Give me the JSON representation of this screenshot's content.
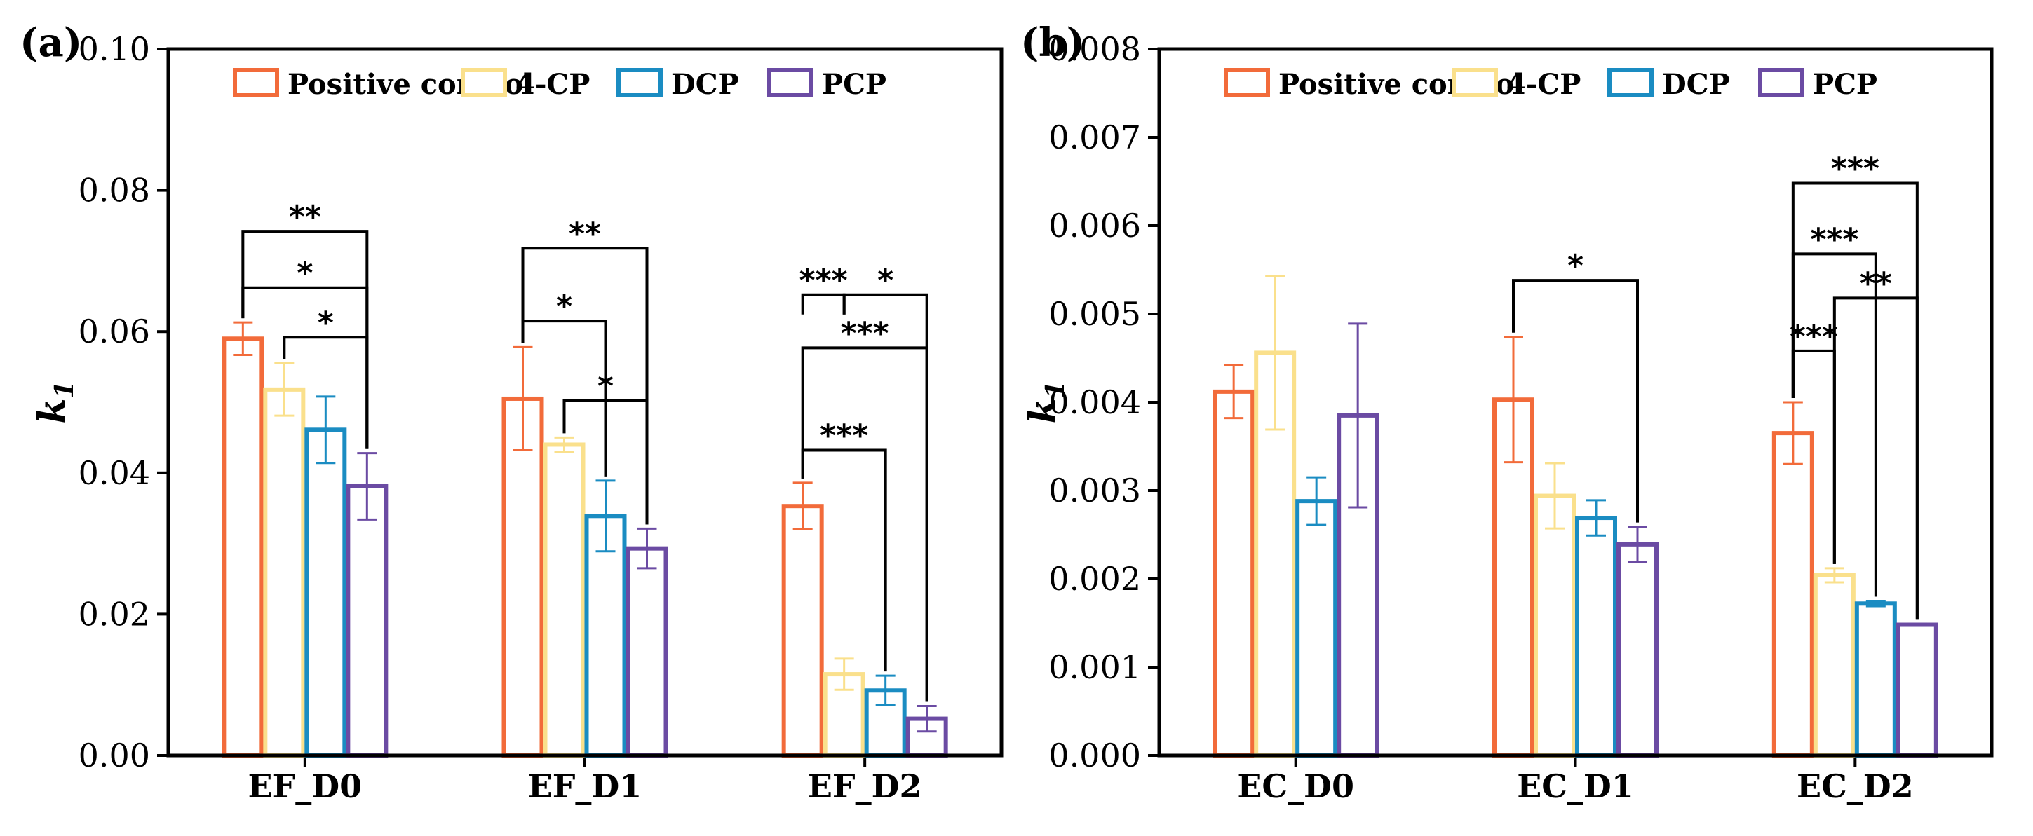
{
  "chart_data": [
    {
      "type": "bar",
      "panel_label": "(a)",
      "ylabel": "k",
      "ylabel_sub": "1",
      "xlabel": "",
      "ylim": [
        0,
        0.1
      ],
      "yticks": [
        "0.00",
        "0.02",
        "0.04",
        "0.06",
        "0.08",
        "0.10"
      ],
      "categories": [
        "EF_D0",
        "EF_D1",
        "EF_D2"
      ],
      "legend_position": "top",
      "series": [
        {
          "name": "Positive control",
          "color": "#F26B3A",
          "values": [
            0.059,
            0.0505,
            0.0353
          ],
          "errors": [
            0.0023,
            0.0073,
            0.0033
          ]
        },
        {
          "name": "4-CP",
          "color": "#FAE08C",
          "values": [
            0.0518,
            0.044,
            0.0115
          ],
          "errors": [
            0.0037,
            0.001,
            0.0022
          ]
        },
        {
          "name": "DCP",
          "color": "#1A8CC2",
          "values": [
            0.0461,
            0.0339,
            0.0092
          ],
          "errors": [
            0.0047,
            0.005,
            0.0021
          ]
        },
        {
          "name": "PCP",
          "color": "#6B4BA3",
          "values": [
            0.0381,
            0.0293,
            0.0052
          ],
          "errors": [
            0.0047,
            0.0028,
            0.0018
          ]
        }
      ],
      "annotations": [
        {
          "group": 0,
          "from": 0,
          "to": 3,
          "y": 0.0742,
          "text": "**"
        },
        {
          "group": 0,
          "from": 0,
          "to": 3,
          "y": 0.0662,
          "text": "*"
        },
        {
          "group": 0,
          "from": 1,
          "to": 3,
          "y": 0.0592,
          "text": "*"
        },
        {
          "group": 1,
          "from": 0,
          "to": 3,
          "y": 0.0718,
          "text": "**"
        },
        {
          "group": 1,
          "from": 0,
          "to": 2,
          "y": 0.0615,
          "text": "*"
        },
        {
          "group": 1,
          "from": 1,
          "to": 3,
          "y": 0.0502,
          "text": "*"
        },
        {
          "group": 2,
          "from": 0,
          "to": 1,
          "y": 0.0652,
          "text": "***",
          "mode": "mid"
        },
        {
          "group": 2,
          "from": 1,
          "to": 3,
          "y": 0.0652,
          "text": "*",
          "mode": "mid"
        },
        {
          "group": 2,
          "from": 0,
          "to": 3,
          "y": 0.0577,
          "text": "***"
        },
        {
          "group": 2,
          "from": 0,
          "to": 2,
          "y": 0.0432,
          "text": "***"
        }
      ]
    },
    {
      "type": "bar",
      "panel_label": "(b)",
      "ylabel": "k",
      "ylabel_sub": "1",
      "xlabel": "",
      "ylim": [
        0,
        0.008
      ],
      "yticks": [
        "0.000",
        "0.001",
        "0.002",
        "0.003",
        "0.004",
        "0.005",
        "0.006",
        "0.007",
        "0.008"
      ],
      "categories": [
        "EC_D0",
        "EC_D1",
        "EC_D2"
      ],
      "legend_position": "top",
      "series": [
        {
          "name": "Positive control",
          "color": "#F26B3A",
          "values": [
            0.00412,
            0.00403,
            0.00365
          ],
          "errors": [
            0.0003,
            0.00071,
            0.00035
          ]
        },
        {
          "name": "4-CP",
          "color": "#FAE08C",
          "values": [
            0.00456,
            0.00294,
            0.00204
          ],
          "errors": [
            0.00087,
            0.00037,
            8e-05
          ]
        },
        {
          "name": "DCP",
          "color": "#1A8CC2",
          "values": [
            0.00288,
            0.00269,
            0.00172
          ],
          "errors": [
            0.00027,
            0.0002,
            3e-05
          ]
        },
        {
          "name": "PCP",
          "color": "#6B4BA3",
          "values": [
            0.00385,
            0.00239,
            0.00148
          ],
          "errors": [
            0.00104,
            0.0002,
            1e-05
          ]
        }
      ],
      "annotations": [
        {
          "group": 1,
          "from": 0,
          "to": 3,
          "y": 0.00538,
          "text": "*"
        },
        {
          "group": 2,
          "from": 0,
          "to": 3,
          "y": 0.00648,
          "text": "***"
        },
        {
          "group": 2,
          "from": 0,
          "to": 2,
          "y": 0.00568,
          "text": "***"
        },
        {
          "group": 2,
          "from": 1,
          "to": 3,
          "y": 0.00518,
          "text": "**"
        },
        {
          "group": 2,
          "from": 0,
          "to": 1,
          "y": 0.00458,
          "text": "***"
        }
      ]
    }
  ]
}
